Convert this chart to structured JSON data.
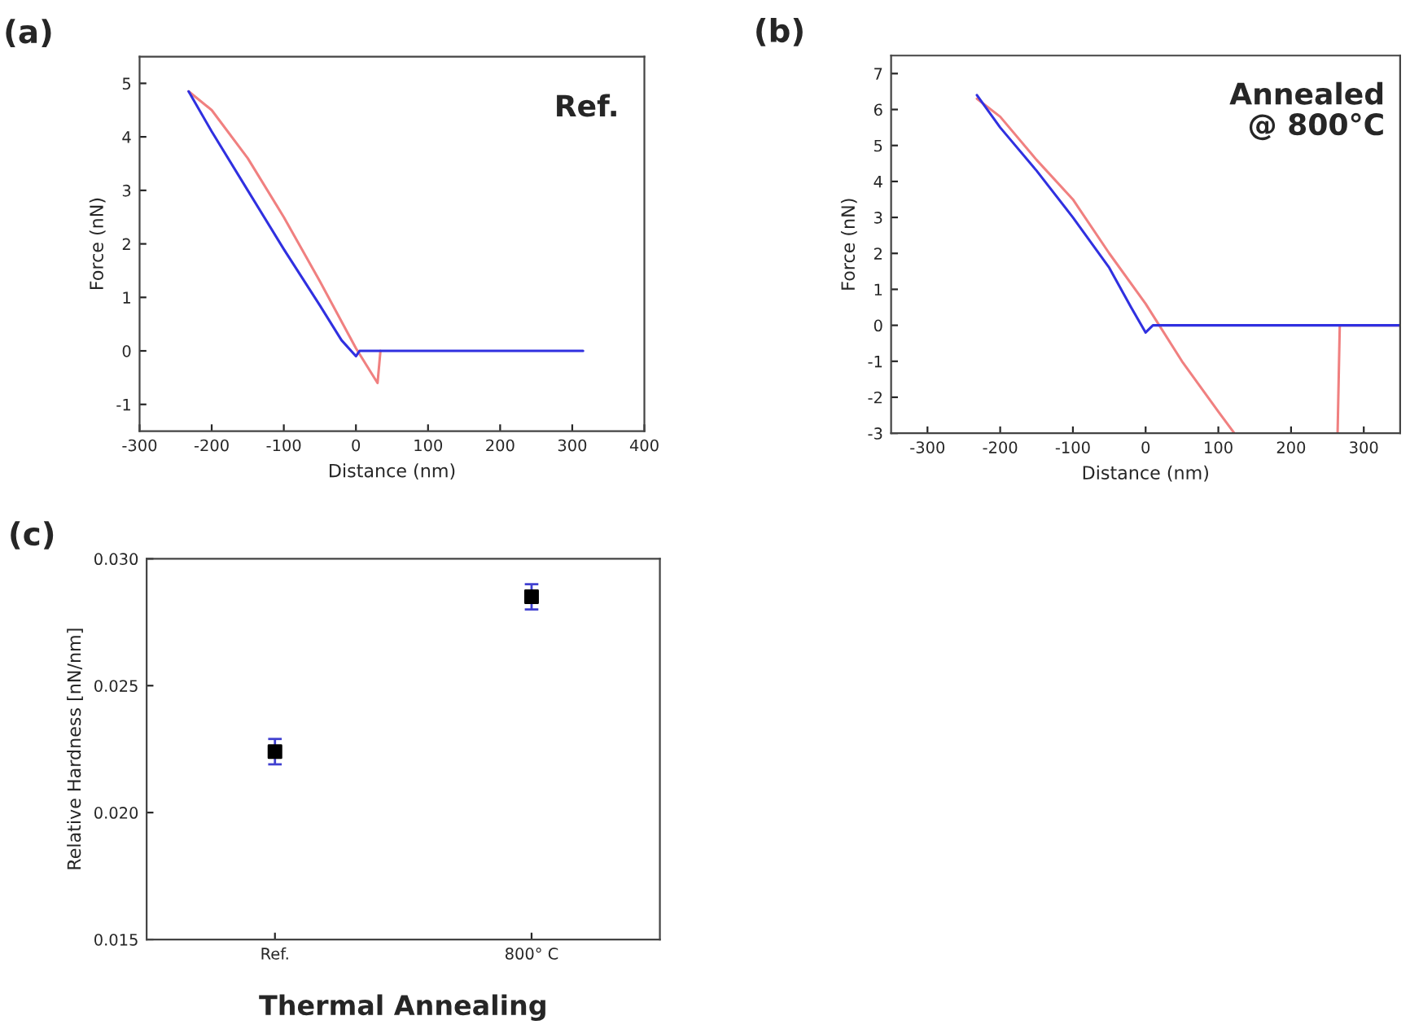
{
  "chart_data": [
    {
      "type": "line",
      "title": "(a)",
      "xlabel": "Distance (nm)",
      "ylabel": "Force (nN)",
      "xlim": [
        -300,
        400
      ],
      "ylim": [
        -1.5,
        5.5
      ],
      "xticks": [
        -300,
        -200,
        -100,
        0,
        100,
        200,
        300,
        400
      ],
      "yticks": [
        -1,
        0,
        1,
        2,
        3,
        4,
        5
      ],
      "annotations": [
        "Ref."
      ],
      "series": [
        {
          "color": "#f08080",
          "x": [
            -232,
            -200,
            -150,
            -100,
            -50,
            0,
            30,
            34
          ],
          "values": [
            4.85,
            4.5,
            3.6,
            2.5,
            1.3,
            0.05,
            -0.6,
            0
          ]
        },
        {
          "color": "#3030e0",
          "x": [
            -232,
            -200,
            -150,
            -100,
            -50,
            -20,
            0,
            5,
            100,
            200,
            315
          ],
          "values": [
            4.85,
            4.1,
            3.0,
            1.9,
            0.85,
            0.2,
            -0.1,
            0,
            0,
            0,
            0
          ]
        }
      ]
    },
    {
      "type": "line",
      "title": "(b)",
      "xlabel": "Distance (nm)",
      "ylabel": "Force (nN)",
      "xlim": [
        -350,
        350
      ],
      "ylim": [
        -3,
        7.5
      ],
      "xticks": [
        -300,
        -200,
        -100,
        0,
        100,
        200,
        300
      ],
      "yticks": [
        -3,
        -2,
        -1,
        0,
        1,
        2,
        3,
        4,
        5,
        6,
        7
      ],
      "annotations": [
        "Annealed\n@ 800°C"
      ],
      "series": [
        {
          "color": "#f08080",
          "x": [
            -232,
            -200,
            -150,
            -100,
            -50,
            0,
            50,
            100,
            122,
            200,
            264,
            267,
            300,
            350
          ],
          "values": [
            6.3,
            5.8,
            4.6,
            3.5,
            2.0,
            0.6,
            -1.0,
            -2.4,
            -3.0,
            null,
            -3.0,
            0,
            0,
            0
          ]
        },
        {
          "color": "#3030e0",
          "x": [
            -232,
            -200,
            -150,
            -100,
            -50,
            -20,
            0,
            10,
            100,
            200,
            300,
            350
          ],
          "values": [
            6.4,
            5.5,
            4.3,
            3.0,
            1.6,
            0.5,
            -0.2,
            0,
            0,
            0,
            0,
            0
          ]
        }
      ]
    },
    {
      "type": "scatter",
      "title": "(c)",
      "xlabel": "Thermal Annealing",
      "ylabel": "Relative Hardness [nN/nm]",
      "categories": [
        "Ref.",
        "800° C"
      ],
      "ylim": [
        0.015,
        0.03
      ],
      "yticks": [
        {
          "value": 0.015,
          "label": "0.015"
        },
        {
          "value": 0.02,
          "label": "0.020"
        },
        {
          "value": 0.025,
          "label": "0.025"
        },
        {
          "value": 0.03,
          "label": "0.030"
        }
      ],
      "marker": "square",
      "series": [
        {
          "color": "#000000",
          "values": [
            0.0224,
            0.0285
          ],
          "errors": [
            0.0005,
            0.0005
          ]
        }
      ]
    }
  ]
}
